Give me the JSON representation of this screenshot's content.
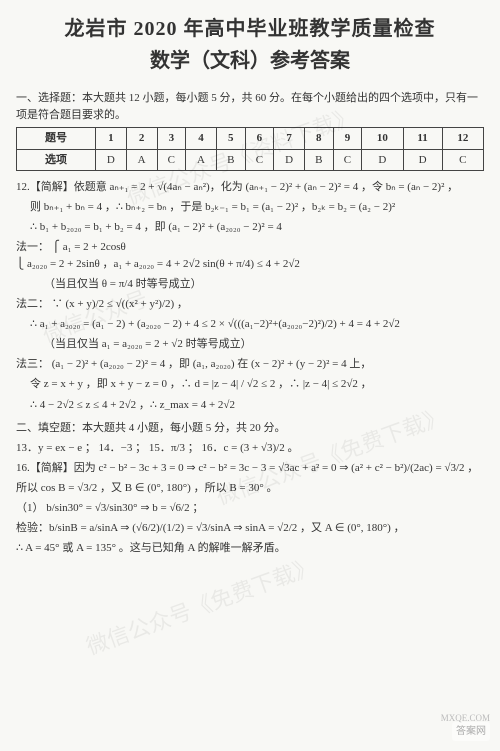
{
  "title": {
    "line1": "龙岩市 2020 年高中毕业班教学质量检查",
    "line2": "数学（文科）参考答案"
  },
  "sectionMC": {
    "heading": "一、选择题：本大题共 12 小题，每小题 5 分，共 60 分。在每个小题给出的四个选项中，只有一项是符合题目要求的。",
    "rowLabels": {
      "num": "题号",
      "ans": "选项"
    },
    "nums": [
      "1",
      "2",
      "3",
      "4",
      "5",
      "6",
      "7",
      "8",
      "9",
      "10",
      "11",
      "12"
    ],
    "answers": [
      "D",
      "A",
      "C",
      "A",
      "B",
      "C",
      "D",
      "B",
      "C",
      "D",
      "D",
      "C"
    ]
  },
  "q12": {
    "lead": "12.【简解】依题意 aₙ₊₁ = 2 + √(4aₙ − aₙ²)，化为 (aₙ₊₁ − 2)² + (aₙ − 2)² = 4 ，令 bₙ = (aₙ − 2)² ，",
    "line2": "则 bₙ₊₁ + bₙ = 4 ，∴ bₙ₊₂ = bₙ ，于是 b₂ₖ₋₁ = b₁ = (a₁ − 2)² ，b₂ₖ = b₂ = (a₂ − 2)²",
    "line3": "∴ b₁ + b₂₀₂₀ = b₁ + b₂ = 4 ，即 (a₁ − 2)² + (a₂₀₂₀ − 2)² = 4",
    "method1": {
      "label": "法一：",
      "brace": "⎧ a₁ = 2 + 2cosθ\n⎩ a₂₀₂₀ = 2 + 2sinθ",
      "result": "，a₁ + a₂₀₂₀ = 4 + 2√2 sin(θ + π/4) ≤ 4 + 2√2",
      "note": "（当且仅当 θ = π/4 时等号成立）"
    },
    "method2": {
      "label": "法二：",
      "eq1": "∵ (x + y)/2 ≤ √((x² + y²)/2) ，",
      "eq2": "∴ a₁ + a₂₀₂₀ = (a₁ − 2) + (a₂₀₂₀ − 2) + 4 ≤ 2 × √(((a₁−2)²+(a₂₀₂₀−2)²)/2) + 4 = 4 + 2√2",
      "note": "（当且仅当 a₁ = a₂₀₂₀ = 2 + √2 时等号成立）"
    },
    "method3": {
      "label": "法三：",
      "eq1": "(a₁ − 2)² + (a₂₀₂₀ − 2)² = 4 ，即 (a₁, a₂₀₂₀) 在 (x − 2)² + (y − 2)² = 4 上，",
      "eq2": "令 z = x + y ，即 x + y − z = 0 ，∴ d = |z − 4| / √2 ≤ 2 ，∴ |z − 4| ≤ 2√2 ，",
      "eq3": "∴ 4 − 2√2 ≤ z ≤ 4 + 2√2 ，∴ z_max = 4 + 2√2"
    }
  },
  "sectionFill": {
    "heading": "二、填空题：本大题共 4 小题，每小题 5 分，共 20 分。",
    "line": "13．y = ex − e ； 14．−3 ； 15．π/3 ； 16．c = (3 + √3)/2 。"
  },
  "q16": {
    "lead": "16.【简解】因为 c² − b² − 3c + 3 = 0 ⇒ c² − b² = 3c − 3 = √3ac + a² = 0 ⇒ (a² + c² − b²)/(2ac) = √3/2 ，",
    "line2": "所以 cos B = √3/2 ，又 B ∈ (0°, 180°) ，所以 B = 30° 。",
    "part1label": "（1）",
    "part1eq": "b/sin30° = √3/sin30° ⇒ b = √6/2 ；",
    "check": "检验：b/sinB = a/sinA ⇒ (√6/2)/(1/2) = √3/sinA ⇒ sinA = √2/2 ，又 A ∈ (0°, 180°) ，",
    "check2": "∴ A = 45° 或 A = 135° 。这与已知角 A 的解唯一解矛盾。"
  },
  "watermarks": {
    "w1": "微信公众号《资料下载》",
    "w2": "微信公众号",
    "w3": "微信公众号《免费下载》",
    "w4": "微信公众号《免费下载》"
  },
  "footer": {
    "url": "MXQE.COM",
    "stamp": "答案网"
  }
}
